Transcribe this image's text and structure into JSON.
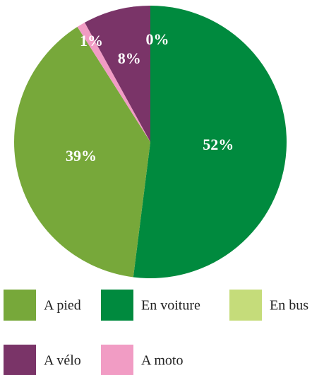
{
  "chart_data": {
    "type": "pie",
    "categories": [
      "En voiture",
      "A pied",
      "A moto",
      "A vélo",
      "En bus"
    ],
    "values": [
      52,
      39,
      1,
      8,
      0
    ],
    "value_labels": [
      "52%",
      "39%",
      "1%",
      "8%",
      "0%"
    ],
    "colors": [
      "#008a3e",
      "#77a83a",
      "#f19cc4",
      "#7a3468",
      "#c5dc7a"
    ],
    "legend": "bottom"
  }
}
